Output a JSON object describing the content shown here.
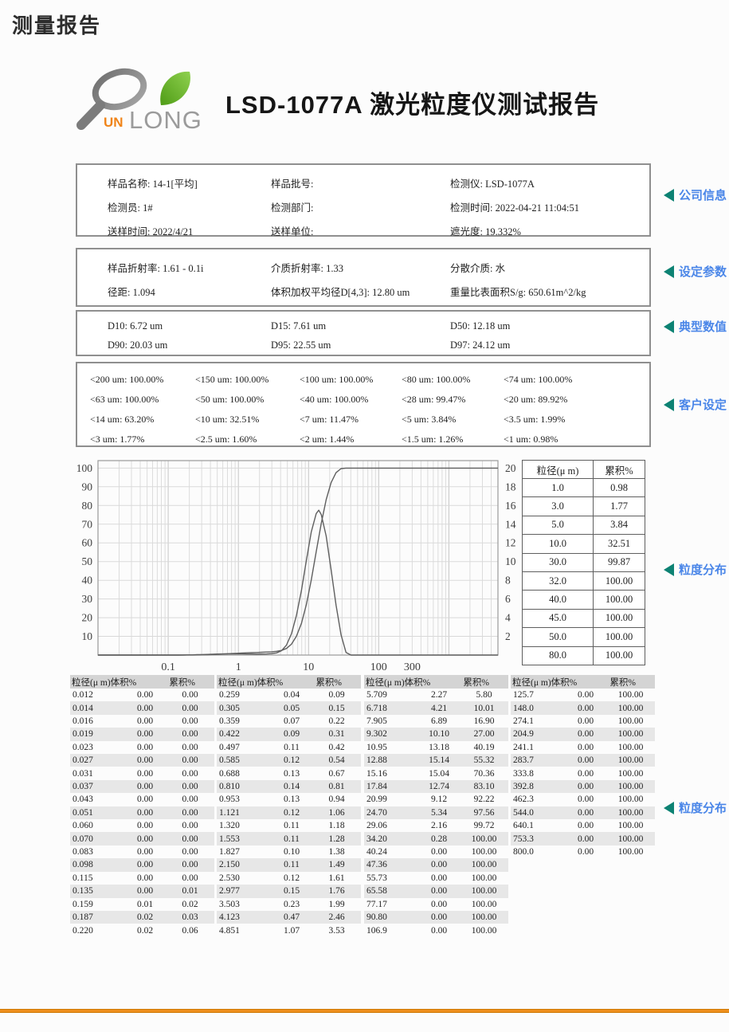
{
  "page": {
    "heading": "测量报告",
    "report_title": "LSD-1077A 激光粒度仪测试报告"
  },
  "logo": {
    "un": "UN",
    "long": "LONG"
  },
  "colors": {
    "accent_orange": "#ee8f1d",
    "annotation_blue": "#4a86e8",
    "arrow_teal": "#0d8273",
    "logo_orange": "#f08419",
    "logo_green": "#6abf2e"
  },
  "annotations": [
    "公司信息",
    "设定参数",
    "典型数值",
    "客户设定",
    "粒度分布",
    "粒度分布"
  ],
  "boxes": {
    "company_info": {
      "rows": [
        [
          "样品名称:  14-1[平均]",
          "样品批号:",
          "检测仪:  LSD-1077A"
        ],
        [
          "检测员:  1#",
          "检测部门:",
          "检测时间:  2022-04-21 11:04:51"
        ],
        [
          "送样时间:  2022/4/21",
          "送样单位:",
          "遮光度:  19.332%"
        ]
      ]
    },
    "parameters": {
      "rows": [
        [
          "样品折射率:  1.61 - 0.1i",
          "介质折射率:  1.33",
          "分散介质:  水"
        ],
        [
          "径距:  1.094",
          "体积加权平均径D[4,3]:  12.80 um",
          "重量比表面积S/g:  650.61m^2/kg"
        ]
      ]
    },
    "typical_values": {
      "rows": [
        [
          "D10: 6.72 um",
          "D15: 7.61 um",
          "D50: 12.18 um"
        ],
        [
          "D90: 20.03 um",
          "D95: 22.55 um",
          "D97: 24.12 um"
        ]
      ]
    },
    "customer_settings": {
      "rows": [
        [
          "<200 um:  100.00%",
          "<150 um:  100.00%",
          "<100 um:  100.00%",
          "<80 um:  100.00%",
          "<74 um:  100.00%"
        ],
        [
          "<63 um:  100.00%",
          "<50 um:  100.00%",
          "<40 um:  100.00%",
          "<28 um:  99.47%",
          "<20 um:  89.92%"
        ],
        [
          "<14 um:  63.20%",
          "<10 um:  32.51%",
          "<7 um:  11.47%",
          "<5 um:  3.84%",
          "<3.5 um:  1.99%"
        ],
        [
          "<3 um:  1.77%",
          "<2.5 um:  1.60%",
          "<2 um:  1.44%",
          "<1.5 um:  1.26%",
          "<1 um:  0.98%"
        ]
      ]
    }
  },
  "chart_data": {
    "type": "line",
    "x_axis": {
      "scale": "log",
      "range": [
        0.01,
        5000
      ],
      "ticks": [
        "0.1",
        "1",
        "10",
        "100",
        "300"
      ],
      "tick_values": [
        0.1,
        1,
        10,
        100,
        300
      ]
    },
    "y_left": {
      "range": [
        0,
        104
      ],
      "ticks": [
        100,
        90,
        80,
        70,
        60,
        50,
        40,
        30,
        20,
        10
      ]
    },
    "y_right": {
      "range": [
        0,
        20.8
      ],
      "ticks": [
        20,
        18,
        16,
        14,
        12,
        10,
        8,
        6,
        4,
        2
      ]
    },
    "grid": true,
    "series": [
      {
        "name": "累积%",
        "axis": "left",
        "points": [
          [
            0.01,
            0.0
          ],
          [
            0.1,
            0.0
          ],
          [
            0.135,
            0.01
          ],
          [
            0.159,
            0.02
          ],
          [
            0.187,
            0.03
          ],
          [
            0.22,
            0.06
          ],
          [
            0.259,
            0.09
          ],
          [
            0.305,
            0.15
          ],
          [
            0.359,
            0.22
          ],
          [
            0.422,
            0.31
          ],
          [
            0.497,
            0.42
          ],
          [
            0.585,
            0.54
          ],
          [
            0.688,
            0.67
          ],
          [
            0.81,
            0.81
          ],
          [
            0.953,
            0.94
          ],
          [
            1.121,
            1.06
          ],
          [
            1.32,
            1.18
          ],
          [
            1.553,
            1.28
          ],
          [
            1.827,
            1.38
          ],
          [
            2.15,
            1.49
          ],
          [
            2.53,
            1.61
          ],
          [
            2.977,
            1.76
          ],
          [
            3.503,
            1.99
          ],
          [
            4.123,
            2.46
          ],
          [
            4.851,
            3.53
          ],
          [
            5.709,
            5.8
          ],
          [
            6.718,
            10.01
          ],
          [
            7.905,
            16.9
          ],
          [
            9.302,
            27.0
          ],
          [
            10.95,
            40.19
          ],
          [
            12.88,
            55.32
          ],
          [
            15.16,
            70.36
          ],
          [
            17.84,
            83.1
          ],
          [
            20.99,
            92.22
          ],
          [
            24.7,
            97.56
          ],
          [
            29.06,
            99.72
          ],
          [
            34.2,
            100.0
          ],
          [
            40.24,
            100.0
          ],
          [
            106.9,
            100.0
          ],
          [
            800.0,
            100.0
          ],
          [
            5000,
            100.0
          ]
        ]
      },
      {
        "name": "体积%",
        "axis": "right",
        "points": [
          [
            0.01,
            0.0
          ],
          [
            0.135,
            0.0
          ],
          [
            0.159,
            0.01
          ],
          [
            0.187,
            0.02
          ],
          [
            0.22,
            0.02
          ],
          [
            0.259,
            0.04
          ],
          [
            0.305,
            0.05
          ],
          [
            0.359,
            0.07
          ],
          [
            0.422,
            0.09
          ],
          [
            0.497,
            0.11
          ],
          [
            0.585,
            0.12
          ],
          [
            0.688,
            0.13
          ],
          [
            0.81,
            0.14
          ],
          [
            0.953,
            0.13
          ],
          [
            1.121,
            0.12
          ],
          [
            1.32,
            0.11
          ],
          [
            1.553,
            0.11
          ],
          [
            1.827,
            0.1
          ],
          [
            2.15,
            0.11
          ],
          [
            2.53,
            0.12
          ],
          [
            2.977,
            0.15
          ],
          [
            3.503,
            0.23
          ],
          [
            4.123,
            0.47
          ],
          [
            4.851,
            1.07
          ],
          [
            5.709,
            2.27
          ],
          [
            6.718,
            4.21
          ],
          [
            7.905,
            6.89
          ],
          [
            9.302,
            10.1
          ],
          [
            10.95,
            13.18
          ],
          [
            12.88,
            15.14
          ],
          [
            14.0,
            15.5
          ],
          [
            15.16,
            15.04
          ],
          [
            17.84,
            12.74
          ],
          [
            20.99,
            9.12
          ],
          [
            24.7,
            5.34
          ],
          [
            29.06,
            2.16
          ],
          [
            34.2,
            0.28
          ],
          [
            40.24,
            0.0
          ],
          [
            5000,
            0.0
          ]
        ]
      }
    ]
  },
  "cumulative_table": {
    "headers": [
      "粒径(μ m)",
      "累积%"
    ],
    "rows": [
      [
        "1.0",
        "0.98"
      ],
      [
        "3.0",
        "1.77"
      ],
      [
        "5.0",
        "3.84"
      ],
      [
        "10.0",
        "32.51"
      ],
      [
        "30.0",
        "99.87"
      ],
      [
        "32.0",
        "100.00"
      ],
      [
        "40.0",
        "100.00"
      ],
      [
        "45.0",
        "100.00"
      ],
      [
        "50.0",
        "100.00"
      ],
      [
        "80.0",
        "100.00"
      ]
    ]
  },
  "distribution_table": {
    "header_left": "粒径(μ m)体积%",
    "header_right": "累积%",
    "groups": [
      [
        [
          "0.012",
          "0.00",
          "0.00"
        ],
        [
          "0.014",
          "0.00",
          "0.00"
        ],
        [
          "0.016",
          "0.00",
          "0.00"
        ],
        [
          "0.019",
          "0.00",
          "0.00"
        ],
        [
          "0.023",
          "0.00",
          "0.00"
        ],
        [
          "0.027",
          "0.00",
          "0.00"
        ],
        [
          "0.031",
          "0.00",
          "0.00"
        ],
        [
          "0.037",
          "0.00",
          "0.00"
        ],
        [
          "0.043",
          "0.00",
          "0.00"
        ],
        [
          "0.051",
          "0.00",
          "0.00"
        ],
        [
          "0.060",
          "0.00",
          "0.00"
        ],
        [
          "0.070",
          "0.00",
          "0.00"
        ],
        [
          "0.083",
          "0.00",
          "0.00"
        ],
        [
          "0.098",
          "0.00",
          "0.00"
        ],
        [
          "0.115",
          "0.00",
          "0.00"
        ],
        [
          "0.135",
          "0.00",
          "0.01"
        ],
        [
          "0.159",
          "0.01",
          "0.02"
        ],
        [
          "0.187",
          "0.02",
          "0.03"
        ],
        [
          "0.220",
          "0.02",
          "0.06"
        ]
      ],
      [
        [
          "0.259",
          "0.04",
          "0.09"
        ],
        [
          "0.305",
          "0.05",
          "0.15"
        ],
        [
          "0.359",
          "0.07",
          "0.22"
        ],
        [
          "0.422",
          "0.09",
          "0.31"
        ],
        [
          "0.497",
          "0.11",
          "0.42"
        ],
        [
          "0.585",
          "0.12",
          "0.54"
        ],
        [
          "0.688",
          "0.13",
          "0.67"
        ],
        [
          "0.810",
          "0.14",
          "0.81"
        ],
        [
          "0.953",
          "0.13",
          "0.94"
        ],
        [
          "1.121",
          "0.12",
          "1.06"
        ],
        [
          "1.320",
          "0.11",
          "1.18"
        ],
        [
          "1.553",
          "0.11",
          "1.28"
        ],
        [
          "1.827",
          "0.10",
          "1.38"
        ],
        [
          "2.150",
          "0.11",
          "1.49"
        ],
        [
          "2.530",
          "0.12",
          "1.61"
        ],
        [
          "2.977",
          "0.15",
          "1.76"
        ],
        [
          "3.503",
          "0.23",
          "1.99"
        ],
        [
          "4.123",
          "0.47",
          "2.46"
        ],
        [
          "4.851",
          "1.07",
          "3.53"
        ]
      ],
      [
        [
          "5.709",
          "2.27",
          "5.80"
        ],
        [
          "6.718",
          "4.21",
          "10.01"
        ],
        [
          "7.905",
          "6.89",
          "16.90"
        ],
        [
          "9.302",
          "10.10",
          "27.00"
        ],
        [
          "10.95",
          "13.18",
          "40.19"
        ],
        [
          "12.88",
          "15.14",
          "55.32"
        ],
        [
          "15.16",
          "15.04",
          "70.36"
        ],
        [
          "17.84",
          "12.74",
          "83.10"
        ],
        [
          "20.99",
          "9.12",
          "92.22"
        ],
        [
          "24.70",
          "5.34",
          "97.56"
        ],
        [
          "29.06",
          "2.16",
          "99.72"
        ],
        [
          "34.20",
          "0.28",
          "100.00"
        ],
        [
          "40.24",
          "0.00",
          "100.00"
        ],
        [
          "47.36",
          "0.00",
          "100.00"
        ],
        [
          "55.73",
          "0.00",
          "100.00"
        ],
        [
          "65.58",
          "0.00",
          "100.00"
        ],
        [
          "77.17",
          "0.00",
          "100.00"
        ],
        [
          "90.80",
          "0.00",
          "100.00"
        ],
        [
          "106.9",
          "0.00",
          "100.00"
        ]
      ],
      [
        [
          "125.7",
          "0.00",
          "100.00"
        ],
        [
          "148.0",
          "0.00",
          "100.00"
        ],
        [
          "274.1",
          "0.00",
          "100.00"
        ],
        [
          "204.9",
          "0.00",
          "100.00"
        ],
        [
          "241.1",
          "0.00",
          "100.00"
        ],
        [
          "283.7",
          "0.00",
          "100.00"
        ],
        [
          "333.8",
          "0.00",
          "100.00"
        ],
        [
          "392.8",
          "0.00",
          "100.00"
        ],
        [
          "462.3",
          "0.00",
          "100.00"
        ],
        [
          "544.0",
          "0.00",
          "100.00"
        ],
        [
          "640.1",
          "0.00",
          "100.00"
        ],
        [
          "753.3",
          "0.00",
          "100.00"
        ],
        [
          "800.0",
          "0.00",
          "100.00"
        ]
      ]
    ]
  }
}
